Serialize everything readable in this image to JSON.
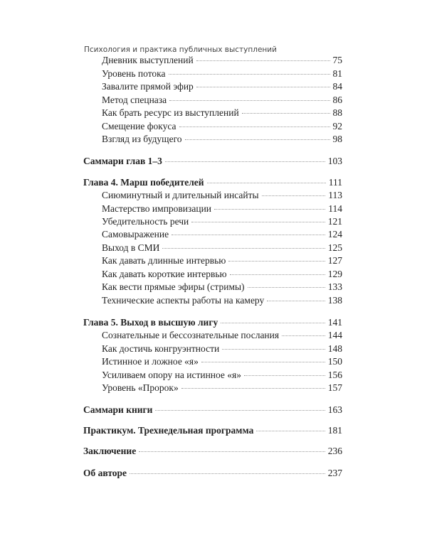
{
  "header": "Психология и практика публичных выступлений",
  "entries": [
    {
      "title": "Дневник выступлений",
      "page": "75",
      "level": "sub"
    },
    {
      "title": "Уровень потока",
      "page": "81",
      "level": "sub"
    },
    {
      "title": "Завалите прямой эфир",
      "page": "84",
      "level": "sub"
    },
    {
      "title": "Метод спецназа",
      "page": "86",
      "level": "sub"
    },
    {
      "title": "Как брать ресурс из выступлений",
      "page": "88",
      "level": "sub"
    },
    {
      "title": "Смещение фокуса",
      "page": "92",
      "level": "sub"
    },
    {
      "title": "Взгляд из будущего",
      "page": "98",
      "level": "sub"
    },
    {
      "title": "Саммари глав 1–3",
      "page": "103",
      "level": "ch"
    },
    {
      "title": "Глава 4. Марш победителей",
      "page": "111",
      "level": "ch"
    },
    {
      "title": "Сиюминутный и длительный инсайты",
      "page": "113",
      "level": "sub"
    },
    {
      "title": "Мастерство импровизации",
      "page": "114",
      "level": "sub"
    },
    {
      "title": "Убедительность речи",
      "page": "121",
      "level": "sub"
    },
    {
      "title": "Самовыражение",
      "page": "124",
      "level": "sub"
    },
    {
      "title": "Выход в СМИ",
      "page": "125",
      "level": "sub"
    },
    {
      "title": "Как давать длинные интервью",
      "page": "127",
      "level": "sub"
    },
    {
      "title": "Как давать короткие интервью",
      "page": "129",
      "level": "sub"
    },
    {
      "title": "Как вести прямые эфиры (стримы)",
      "page": "133",
      "level": "sub"
    },
    {
      "title": "Технические аспекты работы на камеру",
      "page": "138",
      "level": "sub"
    },
    {
      "title": "Глава 5. Выход в высшую лигу",
      "page": "141",
      "level": "ch"
    },
    {
      "title": "Сознательные и бессознательные послания",
      "page": "144",
      "level": "sub"
    },
    {
      "title": "Как достичь конгруэнтности",
      "page": "148",
      "level": "sub"
    },
    {
      "title": "Истинное и ложное «я»",
      "page": "150",
      "level": "sub"
    },
    {
      "title": "Усиливаем опору на истинное «я»",
      "page": "156",
      "level": "sub"
    },
    {
      "title": "Уровень «Пророк»",
      "page": "157",
      "level": "sub"
    },
    {
      "title": "Саммари книги",
      "page": "163",
      "level": "ch"
    },
    {
      "title": "Практикум. Трехнедельная программа",
      "page": "181",
      "level": "ch"
    },
    {
      "title": "Заключение",
      "page": "236",
      "level": "ch"
    },
    {
      "title": "Об авторе",
      "page": "237",
      "level": "ch"
    }
  ]
}
